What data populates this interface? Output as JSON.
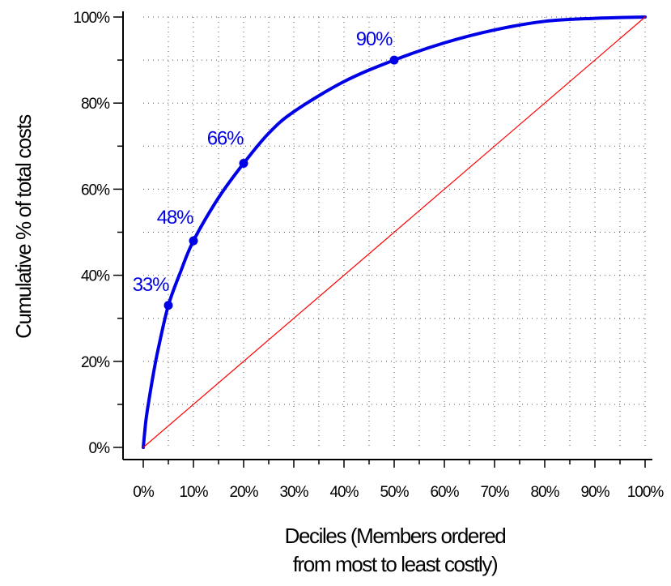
{
  "chart_data": {
    "type": "line",
    "xlabel_lines": [
      "Deciles (Members ordered",
      "from most to least costly)"
    ],
    "ylabel": "Cumulative % of total costs",
    "xlim": [
      0,
      100
    ],
    "ylim": [
      0,
      100
    ],
    "x_tick_labels": [
      "0%",
      "10%",
      "20%",
      "30%",
      "40%",
      "50%",
      "60%",
      "70%",
      "80%",
      "90%",
      "100%"
    ],
    "y_tick_labels": [
      "0%",
      "20%",
      "40%",
      "60%",
      "80%",
      "100%"
    ],
    "grid": true,
    "series": [
      {
        "color": "#0000e6",
        "x": [
          0,
          0.5,
          1,
          2,
          3,
          5,
          7.5,
          10,
          15,
          20,
          25,
          30,
          40,
          50,
          60,
          70,
          80,
          90,
          100
        ],
        "y": [
          0,
          6,
          10,
          17,
          23,
          33,
          41,
          48,
          58,
          66,
          73,
          78,
          85,
          90,
          94,
          97,
          99,
          99.7,
          100
        ]
      },
      {
        "color": "#ff0000",
        "x": [
          0,
          100
        ],
        "y": [
          0,
          100
        ]
      }
    ],
    "highlighted_points": [
      {
        "x": 5,
        "y": 33,
        "label": "33%"
      },
      {
        "x": 10,
        "y": 48,
        "label": "48%"
      },
      {
        "x": 20,
        "y": 66,
        "label": "66%"
      },
      {
        "x": 50,
        "y": 90,
        "label": "90%"
      }
    ]
  }
}
